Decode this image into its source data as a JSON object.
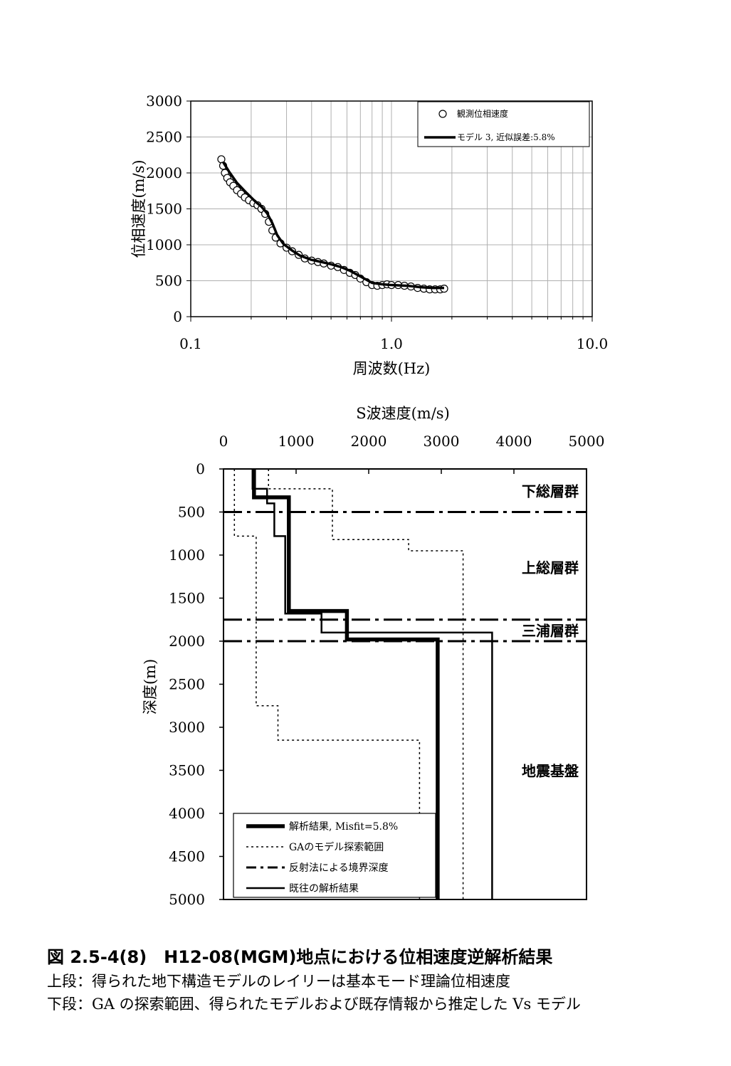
{
  "chart_data": [
    {
      "type": "scatter",
      "xlabel": "周波数(Hz)",
      "ylabel": "位相速度(m/s)",
      "xscale": "log",
      "xlim": [
        0.1,
        10.0
      ],
      "ylim": [
        0,
        3000
      ],
      "x_ticks": [
        "0.1",
        "1.0",
        "10.0"
      ],
      "y_ticks": [
        "0",
        "500",
        "1000",
        "1500",
        "2000",
        "2500",
        "3000"
      ],
      "grid": true,
      "legend_position": "top-right",
      "legend": [
        "観測位相速度",
        "モデル 3, 近似誤差:5.8%"
      ],
      "series": [
        {
          "name": "観測位相速度",
          "marker": "open-circle",
          "points": [
            [
              0.142,
              2190
            ],
            [
              0.145,
              2100
            ],
            [
              0.148,
              2000
            ],
            [
              0.152,
              1930
            ],
            [
              0.157,
              1870
            ],
            [
              0.163,
              1820
            ],
            [
              0.17,
              1760
            ],
            [
              0.178,
              1710
            ],
            [
              0.186,
              1660
            ],
            [
              0.195,
              1620
            ],
            [
              0.205,
              1580
            ],
            [
              0.215,
              1550
            ],
            [
              0.225,
              1500
            ],
            [
              0.235,
              1430
            ],
            [
              0.245,
              1320
            ],
            [
              0.255,
              1200
            ],
            [
              0.265,
              1100
            ],
            [
              0.28,
              1020
            ],
            [
              0.3,
              960
            ],
            [
              0.32,
              910
            ],
            [
              0.345,
              860
            ],
            [
              0.37,
              810
            ],
            [
              0.4,
              780
            ],
            [
              0.43,
              760
            ],
            [
              0.46,
              740
            ],
            [
              0.5,
              710
            ],
            [
              0.54,
              690
            ],
            [
              0.58,
              650
            ],
            [
              0.62,
              610
            ],
            [
              0.66,
              580
            ],
            [
              0.7,
              530
            ],
            [
              0.75,
              480
            ],
            [
              0.8,
              440
            ],
            [
              0.85,
              430
            ],
            [
              0.9,
              440
            ],
            [
              0.95,
              450
            ],
            [
              1.0,
              440
            ],
            [
              1.08,
              440
            ],
            [
              1.16,
              430
            ],
            [
              1.25,
              420
            ],
            [
              1.35,
              400
            ],
            [
              1.45,
              390
            ],
            [
              1.55,
              380
            ],
            [
              1.65,
              380
            ],
            [
              1.75,
              380
            ],
            [
              1.83,
              390
            ]
          ]
        },
        {
          "name": "モデル 3, 近似誤差:5.8%",
          "style": "thick-line",
          "points": [
            [
              0.145,
              2150
            ],
            [
              0.155,
              2020
            ],
            [
              0.17,
              1860
            ],
            [
              0.19,
              1720
            ],
            [
              0.21,
              1600
            ],
            [
              0.225,
              1530
            ],
            [
              0.24,
              1440
            ],
            [
              0.255,
              1300
            ],
            [
              0.27,
              1130
            ],
            [
              0.29,
              1010
            ],
            [
              0.32,
              920
            ],
            [
              0.35,
              850
            ],
            [
              0.4,
              790
            ],
            [
              0.45,
              760
            ],
            [
              0.5,
              730
            ],
            [
              0.56,
              690
            ],
            [
              0.62,
              640
            ],
            [
              0.7,
              560
            ],
            [
              0.8,
              470
            ],
            [
              0.9,
              450
            ],
            [
              1.0,
              440
            ],
            [
              1.2,
              430
            ],
            [
              1.4,
              410
            ],
            [
              1.6,
              400
            ],
            [
              1.83,
              400
            ]
          ]
        }
      ]
    },
    {
      "type": "line",
      "xlabel": "S波速度(m/s)",
      "ylabel": "深度(m)",
      "xlim": [
        0,
        5000
      ],
      "ylim": [
        5000,
        0
      ],
      "x_ticks": [
        "0",
        "1000",
        "2000",
        "3000",
        "4000",
        "5000"
      ],
      "y_ticks": [
        "0",
        "500",
        "1000",
        "1500",
        "2000",
        "2500",
        "3000",
        "3500",
        "4000",
        "4500",
        "5000"
      ],
      "grid": false,
      "legend_position": "bottom-left",
      "layer_labels": [
        {
          "label": "下総層群",
          "vs": 4500,
          "depth": 250
        },
        {
          "label": "上総層群",
          "vs": 4500,
          "depth": 1140
        },
        {
          "label": "三浦層群",
          "vs": 4500,
          "depth": 1870
        },
        {
          "label": "地震基盤",
          "vs": 4500,
          "depth": 3500
        }
      ],
      "series": [
        {
          "name": "解析結果, Misfit=5.8%",
          "style": "thick",
          "points": [
            [
              420,
              0
            ],
            [
              420,
              330
            ],
            [
              900,
              330
            ],
            [
              900,
              1650
            ],
            [
              1700,
              1650
            ],
            [
              1700,
              1980
            ],
            [
              2950,
              1980
            ],
            [
              2950,
              5000
            ]
          ]
        },
        {
          "name": "GAのモデル探索範囲",
          "style": "dotted",
          "points": [
            [
              150,
              0
            ],
            [
              150,
              780
            ],
            [
              450,
              780
            ],
            [
              450,
              2750
            ],
            [
              750,
              2750
            ],
            [
              750,
              3150
            ],
            [
              2700,
              3150
            ],
            [
              2700,
              5000
            ]
          ]
        },
        {
          "name": "GAのモデル探索範囲",
          "style": "dotted",
          "points": [
            [
              620,
              0
            ],
            [
              620,
              230
            ],
            [
              1500,
              230
            ],
            [
              1500,
              820
            ],
            [
              2550,
              820
            ],
            [
              2550,
              950
            ],
            [
              3300,
              950
            ],
            [
              3300,
              5000
            ]
          ]
        },
        {
          "name": "反射法による境界深度",
          "style": "dash-dot",
          "depths": [
            500,
            1750,
            2000
          ]
        },
        {
          "name": "既往の解析結果",
          "style": "medium",
          "points": [
            [
              400,
              0
            ],
            [
              400,
              230
            ],
            [
              600,
              230
            ],
            [
              600,
              400
            ],
            [
              700,
              400
            ],
            [
              700,
              780
            ],
            [
              850,
              780
            ],
            [
              850,
              1680
            ],
            [
              1350,
              1680
            ],
            [
              1350,
              1900
            ],
            [
              3700,
              1900
            ],
            [
              3700,
              5000
            ]
          ]
        }
      ],
      "legend": [
        "解析結果, Misfit=5.8%",
        "GAのモデル探索範囲",
        "反射法による境界深度",
        "既往の解析結果"
      ]
    }
  ],
  "caption": {
    "title": "図 2.5-4(8)　H12-08(MGM)地点における位相速度逆解析結果",
    "line1": "上段：得られた地下構造モデルのレイリーは基本モード理論位相速度",
    "line2": "下段：GA の探索範囲、得られたモデルおよび既存情報から推定した Vs モデル"
  }
}
